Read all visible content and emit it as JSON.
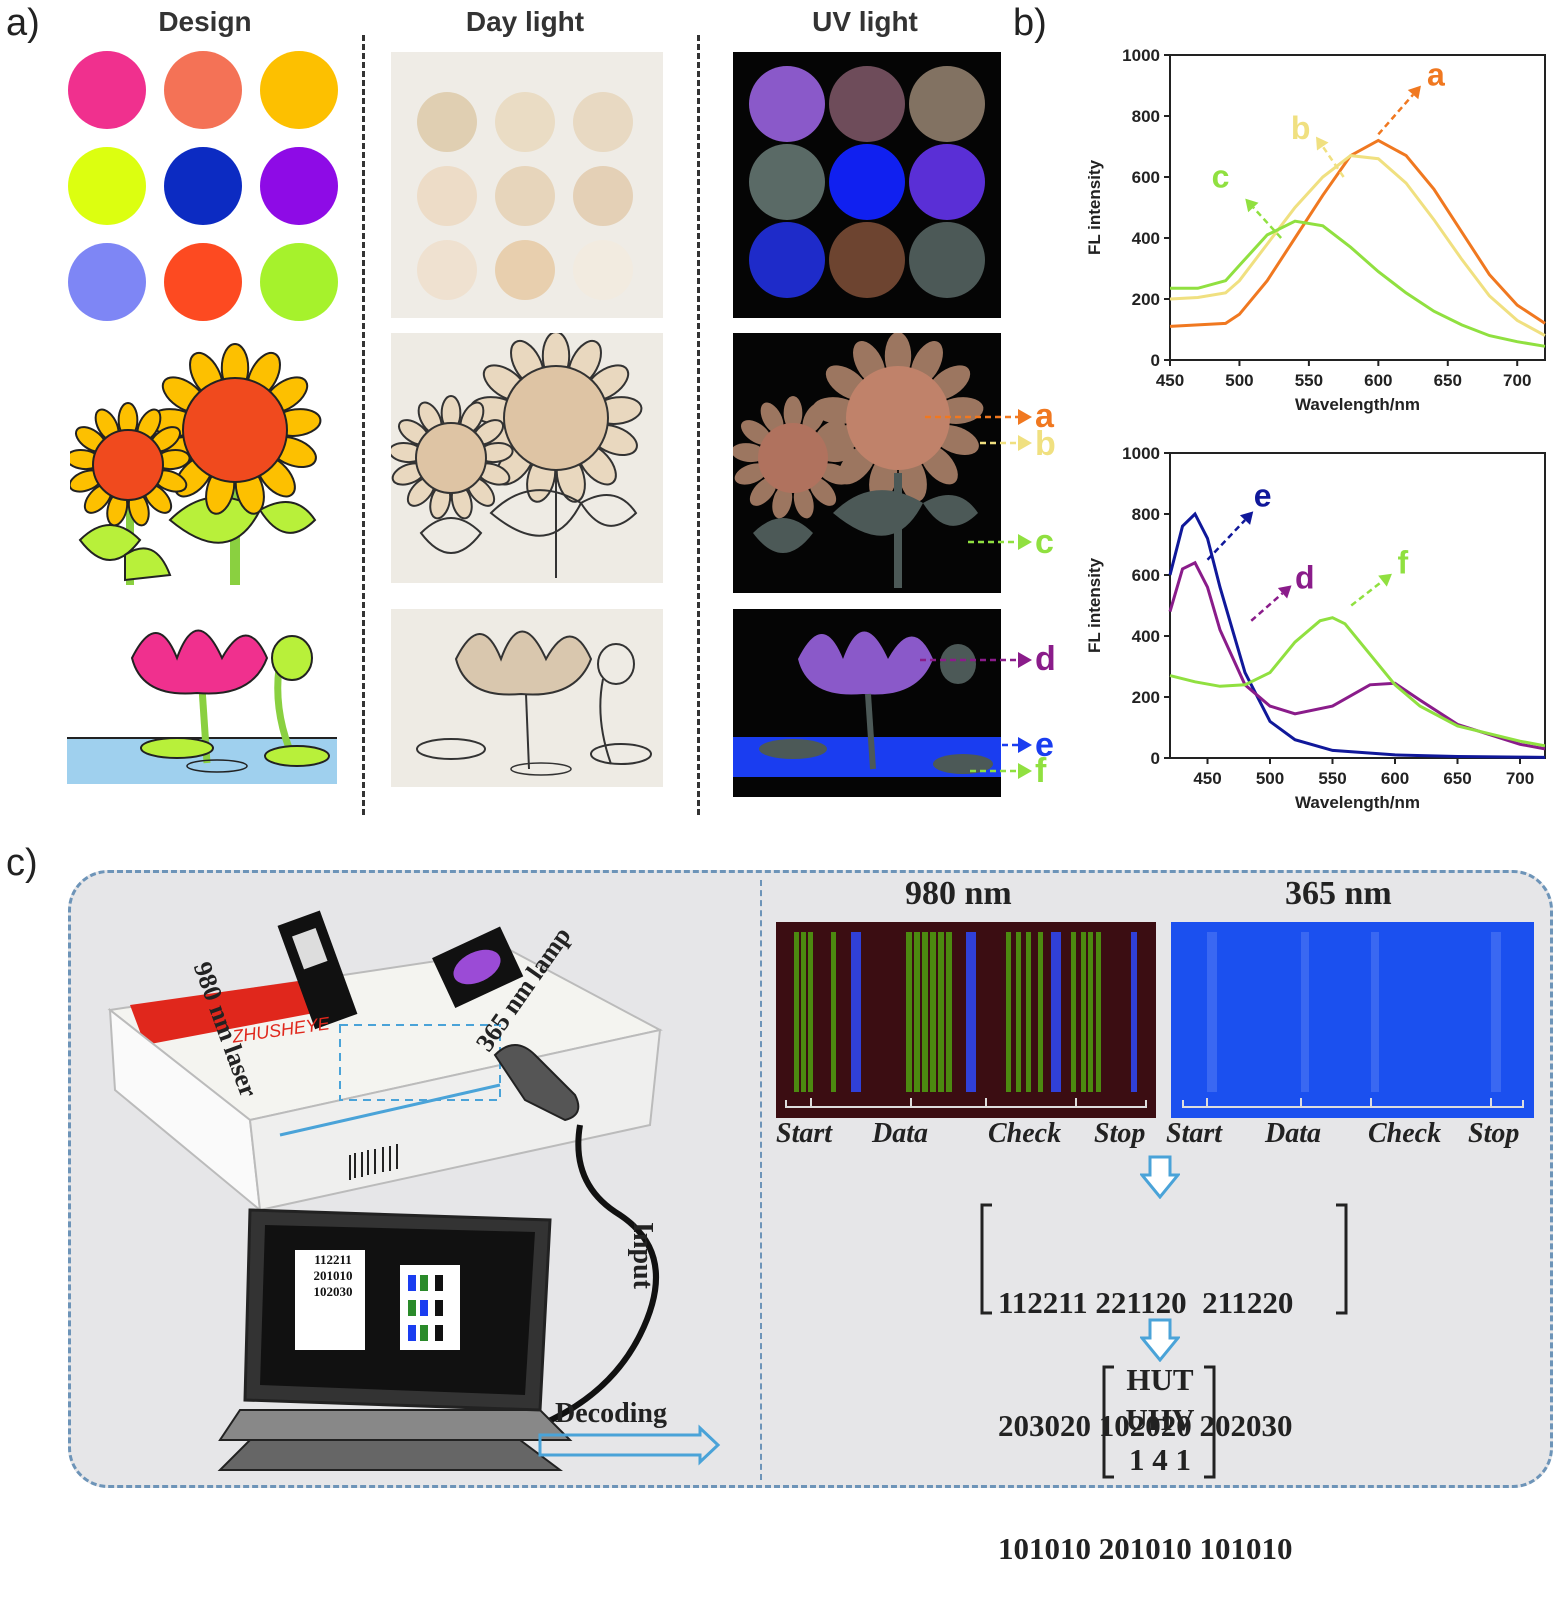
{
  "panel_a": {
    "label": "a)",
    "col_design": "Design",
    "col_daylight": "Day light",
    "col_uv": "UV light",
    "design_dots": [
      "#f0308e",
      "#f47256",
      "#fdc000",
      "#dcff10",
      "#0c2bc2",
      "#8e0be6",
      "#7e86f5",
      "#fd4a21",
      "#a6f22c"
    ],
    "daylight_dots": [
      "#e0cfb2",
      "#eadcc4",
      "#e8d9c2",
      "#eddcc7",
      "#e7d5bb",
      "#e4d0b6",
      "#efe1d0",
      "#e8cfae",
      "#f2ebe0"
    ],
    "uv_dots": [
      "#8a59c9",
      "#6e4c5a",
      "#827262",
      "#5a6a66",
      "#1020f0",
      "#5a2fd6",
      "#1e2bc9",
      "#6d4430",
      "#4c5957"
    ],
    "markers": [
      "a",
      "b",
      "c",
      "d",
      "e",
      "f"
    ]
  },
  "panel_b": {
    "label": "b)",
    "charts": [
      {
        "ylabel": "FL intensity",
        "xlabel": "Wavelength/nm",
        "yticks": [
          "0",
          "200",
          "400",
          "600",
          "800",
          "1000"
        ],
        "xticks": [
          "450",
          "500",
          "550",
          "600",
          "650",
          "700"
        ],
        "markers": [
          "a",
          "b",
          "c"
        ]
      },
      {
        "ylabel": "FL intensity",
        "xlabel": "Wavelength/nm",
        "yticks": [
          "0",
          "200",
          "400",
          "600",
          "800",
          "1000"
        ],
        "xticks": [
          "450",
          "500",
          "550",
          "600",
          "650",
          "700"
        ],
        "markers": [
          "e",
          "d",
          "f"
        ]
      }
    ]
  },
  "chart_data": [
    {
      "type": "line",
      "xlabel": "Wavelength/nm",
      "ylabel": "FL intensity",
      "xlim": [
        450,
        720
      ],
      "ylim": [
        0,
        1000
      ],
      "series": [
        {
          "name": "a",
          "color": "#f07820",
          "x": [
            450,
            470,
            490,
            500,
            520,
            540,
            560,
            580,
            600,
            620,
            640,
            660,
            680,
            700,
            720
          ],
          "y": [
            110,
            115,
            120,
            150,
            260,
            400,
            540,
            670,
            720,
            670,
            560,
            420,
            280,
            180,
            120
          ]
        },
        {
          "name": "b",
          "color": "#f0e080",
          "x": [
            450,
            470,
            490,
            500,
            520,
            540,
            560,
            580,
            600,
            620,
            640,
            660,
            680,
            700,
            720
          ],
          "y": [
            200,
            205,
            220,
            260,
            380,
            500,
            600,
            670,
            660,
            580,
            460,
            330,
            210,
            130,
            80
          ]
        },
        {
          "name": "c",
          "color": "#90e040",
          "x": [
            450,
            470,
            490,
            500,
            520,
            540,
            560,
            580,
            600,
            620,
            640,
            660,
            680,
            700,
            720
          ],
          "y": [
            235,
            235,
            260,
            310,
            410,
            455,
            440,
            370,
            290,
            220,
            160,
            115,
            80,
            60,
            45
          ]
        }
      ]
    },
    {
      "type": "line",
      "xlabel": "Wavelength/nm",
      "ylabel": "FL intensity",
      "xlim": [
        420,
        720
      ],
      "ylim": [
        0,
        1000
      ],
      "series": [
        {
          "name": "e",
          "color": "#10189a",
          "x": [
            420,
            430,
            440,
            450,
            460,
            480,
            500,
            520,
            550,
            600,
            650,
            700,
            720
          ],
          "y": [
            600,
            760,
            800,
            720,
            560,
            280,
            120,
            60,
            25,
            10,
            5,
            3,
            2
          ]
        },
        {
          "name": "d",
          "color": "#8a1c8a",
          "x": [
            420,
            430,
            440,
            450,
            460,
            480,
            500,
            520,
            550,
            580,
            600,
            620,
            650,
            700,
            720
          ],
          "y": [
            480,
            620,
            640,
            560,
            420,
            240,
            170,
            145,
            170,
            240,
            245,
            190,
            110,
            45,
            30
          ]
        },
        {
          "name": "f",
          "color": "#90e040",
          "x": [
            420,
            440,
            460,
            480,
            500,
            520,
            540,
            550,
            560,
            580,
            600,
            620,
            650,
            700,
            720
          ],
          "y": [
            270,
            250,
            235,
            240,
            280,
            380,
            450,
            460,
            440,
            340,
            240,
            170,
            105,
            55,
            40
          ]
        }
      ]
    }
  ],
  "panel_c": {
    "label": "c)",
    "laser_label": "980 nm laser",
    "lamp_label": "365 nm lamp",
    "box_text": "ZHUSHEYE",
    "input_label": "Input",
    "decoding_label": "Decoding",
    "screen_code": [
      "112211",
      "201010",
      "102030"
    ],
    "title_980": "980 nm",
    "title_365": "365 nm",
    "segments_980": [
      "Start",
      "Data",
      "Check",
      "Stop"
    ],
    "segments_365": [
      "Start",
      "Data",
      "Check",
      "Stop"
    ],
    "code_matrix": [
      "112211 221120  211220",
      "203020 102020 202030",
      "101010 201010 101010"
    ],
    "decoded": [
      "HUT",
      "UHV",
      "1 4 1"
    ]
  }
}
